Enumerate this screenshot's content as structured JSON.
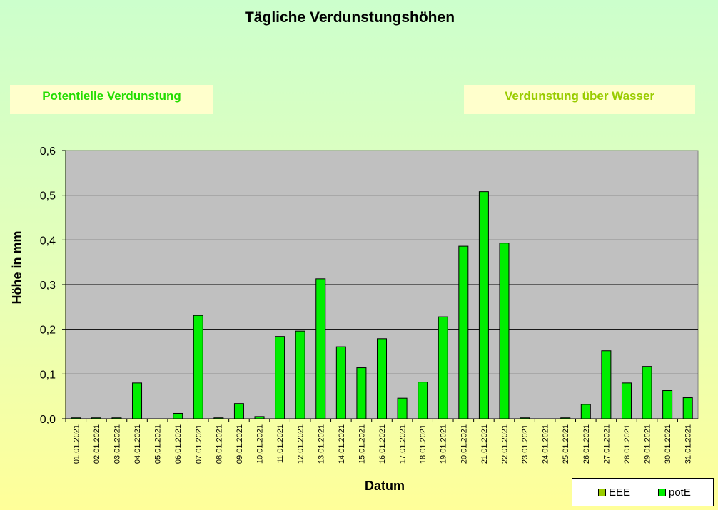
{
  "chart_data": {
    "type": "bar",
    "title": "Tägliche Verdunstungshöhen",
    "xlabel": "Datum",
    "ylabel": "Höhe in mm",
    "ylim": [
      0,
      0.6
    ],
    "yticks": [
      "0,0",
      "0,1",
      "0,2",
      "0,3",
      "0,4",
      "0,5",
      "0,6"
    ],
    "grid": true,
    "legend": "bottom-right",
    "categories": [
      "01.01.2021",
      "02.01.2021",
      "03.01.2021",
      "04.01.2021",
      "05.01.2021",
      "06.01.2021",
      "07.01.2021",
      "08.01.2021",
      "09.01.2021",
      "10.01.2021",
      "11.01.2021",
      "12.01.2021",
      "13.01.2021",
      "14.01.2021",
      "15.01.2021",
      "16.01.2021",
      "17.01.2021",
      "18.01.2021",
      "19.01.2021",
      "20.01.2021",
      "21.01.2021",
      "22.01.2021",
      "23.01.2021",
      "24.01.2021",
      "25.01.2021",
      "26.01.2021",
      "27.01.2021",
      "28.01.2021",
      "29.01.2021",
      "30.01.2021",
      "31.01.2021"
    ],
    "series": [
      {
        "name": "EEE",
        "color": "#99cc00",
        "values": [
          0,
          0,
          0,
          0,
          0,
          0,
          0,
          0,
          0,
          0,
          0,
          0,
          0,
          0,
          0,
          0,
          0,
          0,
          0,
          0,
          0,
          0,
          0,
          0,
          0,
          0,
          0,
          0,
          0,
          0,
          0
        ]
      },
      {
        "name": "potE",
        "color": "#00ee00",
        "values": [
          0.002,
          0.002,
          0.002,
          0.08,
          0,
          0.012,
          0.231,
          0.002,
          0.034,
          0.005,
          0.184,
          0.196,
          0.313,
          0.161,
          0.114,
          0.179,
          0.046,
          0.082,
          0.228,
          0.386,
          0.508,
          0.393,
          0.002,
          0,
          0.002,
          0.032,
          0.152,
          0.08,
          0.117,
          0.063,
          0.047
        ]
      }
    ]
  },
  "legend_boxes": {
    "left": "Potentielle Verdunstung",
    "right": "Verdunstung über Wasser"
  }
}
